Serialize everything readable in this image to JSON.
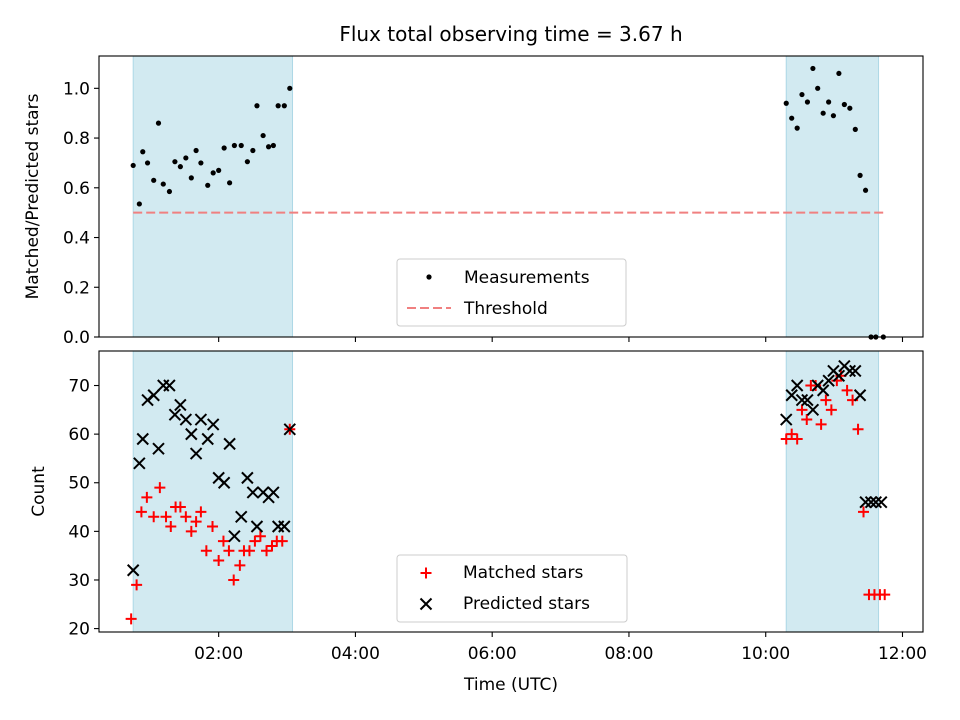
{
  "figure_title": "Flux total observing time = 3.67 h",
  "colors": {
    "shade": "#add8e6",
    "threshold": "#f08080",
    "measurements": "#000000",
    "matched": "#ff0000",
    "predicted": "#000000"
  },
  "chart_data": [
    {
      "type": "scatter",
      "panel": "top",
      "ylabel": "Matched/Predicted stars",
      "xlim": [
        0.25,
        12.3
      ],
      "ylim": [
        0.0,
        1.13
      ],
      "yticks": [
        0.0,
        0.2,
        0.4,
        0.6,
        0.8,
        1.0
      ],
      "ytick_labels": [
        "0.0",
        "0.2",
        "0.4",
        "0.6",
        "0.8",
        "1.0"
      ],
      "xticks": [
        2,
        4,
        6,
        8,
        10,
        12
      ],
      "shaded_intervals": [
        [
          0.75,
          3.08
        ],
        [
          10.3,
          11.65
        ]
      ],
      "threshold": {
        "value": 0.5,
        "x_range": [
          0.75,
          11.72
        ]
      },
      "legend": {
        "position": "bottom-center",
        "entries": [
          "Measurements",
          "Threshold"
        ]
      },
      "series": [
        {
          "name": "Measurements",
          "marker": "dot",
          "x": [
            0.75,
            0.84,
            0.89,
            0.96,
            1.05,
            1.12,
            1.19,
            1.28,
            1.36,
            1.44,
            1.52,
            1.6,
            1.67,
            1.74,
            1.84,
            1.92,
            2.0,
            2.08,
            2.16,
            2.23,
            2.33,
            2.42,
            2.5,
            2.56,
            2.65,
            2.73,
            2.8,
            2.87,
            2.96,
            3.04,
            10.3,
            10.38,
            10.46,
            10.53,
            10.61,
            10.69,
            10.76,
            10.84,
            10.92,
            10.99,
            11.07,
            11.15,
            11.23,
            11.31,
            11.38,
            11.46,
            11.54,
            11.61,
            11.72
          ],
          "y": [
            0.69,
            0.535,
            0.745,
            0.7,
            0.63,
            0.86,
            0.615,
            0.585,
            0.705,
            0.685,
            0.72,
            0.64,
            0.75,
            0.7,
            0.61,
            0.66,
            0.67,
            0.76,
            0.62,
            0.77,
            0.77,
            0.705,
            0.75,
            0.93,
            0.81,
            0.765,
            0.77,
            0.93,
            0.93,
            1.0,
            0.94,
            0.88,
            0.84,
            0.975,
            0.945,
            1.08,
            1.0,
            0.9,
            0.945,
            0.89,
            1.06,
            0.935,
            0.92,
            0.835,
            0.65,
            0.59,
            0.0,
            0.0,
            0.0
          ]
        }
      ]
    },
    {
      "type": "scatter",
      "panel": "bottom",
      "xlabel": "Time (UTC)",
      "ylabel": "Count",
      "xlim": [
        0.25,
        12.3
      ],
      "ylim": [
        19.3,
        77.1
      ],
      "yticks": [
        20,
        30,
        40,
        50,
        60,
        70
      ],
      "ytick_labels": [
        "20",
        "30",
        "40",
        "50",
        "60",
        "70"
      ],
      "xticks": [
        2,
        4,
        6,
        8,
        10,
        12
      ],
      "xtick_labels": [
        "02:00",
        "04:00",
        "06:00",
        "08:00",
        "10:00",
        "12:00"
      ],
      "shaded_intervals": [
        [
          0.75,
          3.08
        ],
        [
          10.3,
          11.65
        ]
      ],
      "legend": {
        "position": "bottom-center",
        "entries": [
          "Matched stars",
          "Predicted stars"
        ]
      },
      "series": [
        {
          "name": "Matched stars",
          "marker": "plus",
          "x": [
            0.72,
            0.8,
            0.87,
            0.95,
            1.05,
            1.14,
            1.23,
            1.3,
            1.37,
            1.44,
            1.52,
            1.6,
            1.67,
            1.74,
            1.82,
            1.91,
            2.0,
            2.07,
            2.15,
            2.22,
            2.31,
            2.37,
            2.45,
            2.53,
            2.61,
            2.7,
            2.78,
            2.85,
            2.93,
            3.04,
            10.3,
            10.38,
            10.46,
            10.53,
            10.6,
            10.66,
            10.73,
            10.81,
            10.88,
            10.96,
            11.04,
            11.1,
            11.19,
            11.27,
            11.35,
            11.43,
            11.51,
            11.59,
            11.67,
            11.74
          ],
          "y": [
            22,
            29,
            44,
            47,
            43,
            49,
            43,
            41,
            45,
            45,
            43,
            40,
            42,
            44,
            36,
            41,
            34,
            38,
            36,
            30,
            33,
            36,
            36,
            38,
            39,
            36,
            37,
            38,
            38,
            61,
            59,
            60,
            59,
            65,
            63,
            70,
            70,
            62,
            67,
            65,
            71,
            72,
            69,
            67,
            61,
            44,
            27,
            27,
            27,
            27
          ]
        },
        {
          "name": "Predicted stars",
          "marker": "x",
          "x": [
            0.75,
            0.84,
            0.89,
            0.96,
            1.05,
            1.12,
            1.19,
            1.28,
            1.36,
            1.44,
            1.52,
            1.6,
            1.67,
            1.74,
            1.84,
            1.92,
            2.0,
            2.08,
            2.16,
            2.23,
            2.33,
            2.42,
            2.5,
            2.56,
            2.65,
            2.73,
            2.8,
            2.87,
            2.96,
            3.04,
            10.3,
            10.38,
            10.46,
            10.53,
            10.61,
            10.69,
            10.76,
            10.84,
            10.92,
            10.99,
            11.07,
            11.15,
            11.23,
            11.31,
            11.38,
            11.46,
            11.54,
            11.61,
            11.69
          ],
          "y": [
            32,
            54,
            59,
            67,
            68,
            57,
            70,
            70,
            64,
            66,
            63,
            60,
            56,
            63,
            59,
            62,
            51,
            50,
            58,
            39,
            43,
            51,
            48,
            41,
            48,
            47,
            48,
            41,
            41,
            61,
            63,
            68,
            70,
            67,
            67,
            65,
            70,
            69,
            71,
            73,
            72,
            74,
            73,
            73,
            68,
            46,
            46,
            46,
            46
          ]
        }
      ]
    }
  ]
}
